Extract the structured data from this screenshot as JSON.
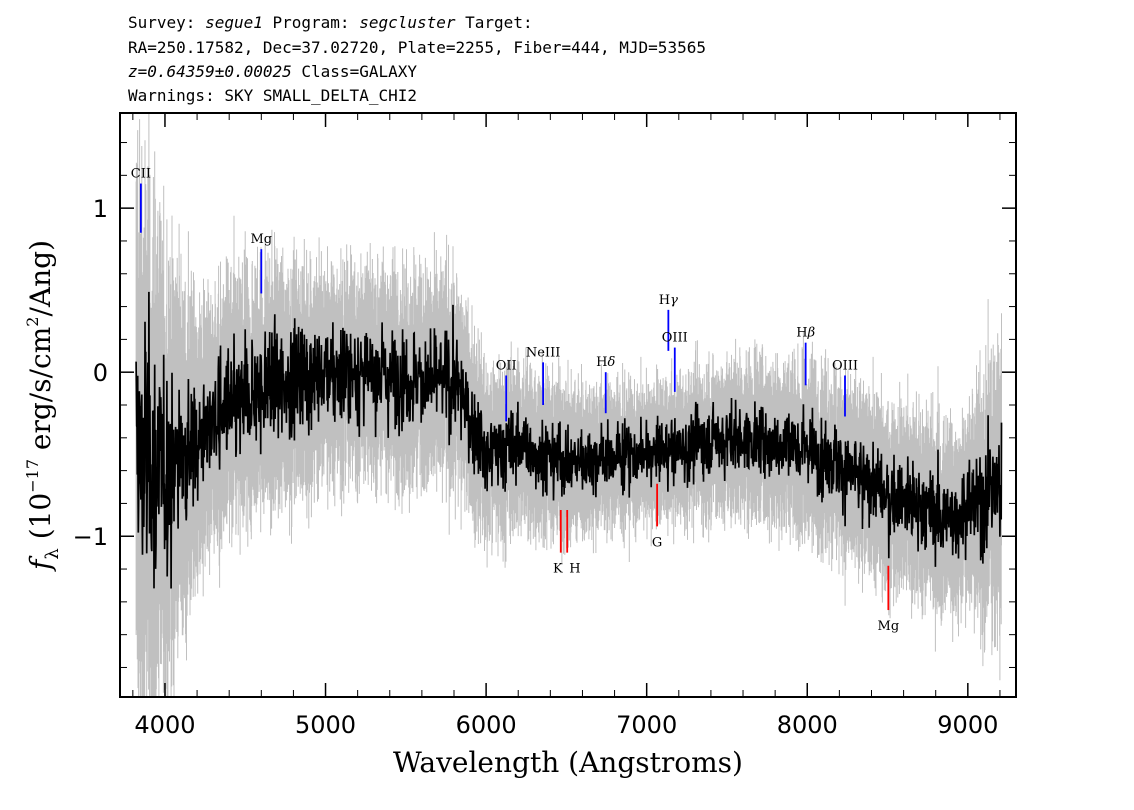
{
  "header": {
    "line1_prefix": "Survey: ",
    "survey": "segue1",
    "line1_mid": " Program: ",
    "program": "segcluster",
    "line1_suffix": " Target:",
    "line2": "RA=250.17582, Dec=37.02720, Plate=2255, Fiber=444, MJD=53565",
    "redshift": "z=0.64359±0.00025",
    "line3_suffix": " Class=GALAXY",
    "line4": "Warnings: SKY SMALL_DELTA_CHI2"
  },
  "chart_data": {
    "type": "line",
    "xlabel": "Wavelength (Angstroms)",
    "ylabel": "f_λ (10^-17 erg/s/cm²/Ang)",
    "xlim": [
      3720,
      9300
    ],
    "ylim": [
      -1.98,
      1.58
    ],
    "x_ticks": [
      4000,
      5000,
      6000,
      7000,
      8000,
      9000
    ],
    "y_ticks": [
      -1,
      0,
      1
    ],
    "y_tick_labels": [
      "−1",
      "0",
      "1"
    ],
    "data_range": [
      3820,
      9210
    ],
    "series": [
      {
        "role": "flux",
        "color": "#000000",
        "approx_continuum": [
          {
            "x": 3820,
            "y": -0.5
          },
          {
            "x": 4000,
            "y": -0.6
          },
          {
            "x": 4300,
            "y": -0.3
          },
          {
            "x": 4700,
            "y": -0.05
          },
          {
            "x": 5200,
            "y": 0.0
          },
          {
            "x": 5600,
            "y": -0.05
          },
          {
            "x": 5800,
            "y": -0.05
          },
          {
            "x": 6000,
            "y": -0.5
          },
          {
            "x": 6200,
            "y": -0.45
          },
          {
            "x": 6500,
            "y": -0.55
          },
          {
            "x": 7000,
            "y": -0.5
          },
          {
            "x": 7500,
            "y": -0.4
          },
          {
            "x": 8000,
            "y": -0.45
          },
          {
            "x": 8500,
            "y": -0.75
          },
          {
            "x": 8900,
            "y": -0.9
          },
          {
            "x": 9200,
            "y": -0.7
          }
        ]
      },
      {
        "role": "error",
        "color": "#c0c0c0",
        "approx_halfwidth": [
          {
            "x": 3820,
            "y": 1.6
          },
          {
            "x": 4200,
            "y": 0.7
          },
          {
            "x": 5000,
            "y": 0.55
          },
          {
            "x": 5800,
            "y": 0.55
          },
          {
            "x": 6000,
            "y": 0.45
          },
          {
            "x": 7000,
            "y": 0.35
          },
          {
            "x": 8000,
            "y": 0.45
          },
          {
            "x": 9000,
            "y": 0.5
          },
          {
            "x": 9200,
            "y": 0.8
          }
        ]
      }
    ],
    "line_markers": [
      {
        "label": "CII",
        "x": 3850,
        "y0": 0.85,
        "y1": 1.15,
        "color": "#0000ff",
        "label_pos": "above",
        "greek": false
      },
      {
        "label": "Mg",
        "x": 4600,
        "y0": 0.48,
        "y1": 0.75,
        "color": "#0000ff",
        "label_pos": "above",
        "greek": false
      },
      {
        "label": "OII",
        "x": 6125,
        "y0": -0.3,
        "y1": -0.02,
        "color": "#0000ff",
        "label_pos": "above",
        "greek": false
      },
      {
        "label": "NeIII",
        "x": 6355,
        "y0": -0.2,
        "y1": 0.06,
        "color": "#0000ff",
        "label_pos": "above",
        "greek": false
      },
      {
        "label": "Hδ",
        "x": 6745,
        "y0": -0.25,
        "y1": 0.0,
        "color": "#0000ff",
        "label_pos": "above",
        "greek": true
      },
      {
        "label": "Hγ",
        "x": 7135,
        "y0": 0.13,
        "y1": 0.38,
        "color": "#0000ff",
        "label_pos": "above",
        "greek": true
      },
      {
        "label": "OIII",
        "x": 7175,
        "y0": -0.12,
        "y1": 0.15,
        "color": "#0000ff",
        "label_pos": "above",
        "greek": false
      },
      {
        "label": "Hβ",
        "x": 7990,
        "y0": -0.08,
        "y1": 0.18,
        "color": "#0000ff",
        "label_pos": "above",
        "greek": true
      },
      {
        "label": "OIII",
        "x": 8235,
        "y0": -0.27,
        "y1": -0.02,
        "color": "#0000ff",
        "label_pos": "above",
        "greek": false
      },
      {
        "label": "K",
        "x": 6465,
        "y0": -1.1,
        "y1": -0.84,
        "color": "#ff0000",
        "label_pos": "below",
        "greek": false
      },
      {
        "label": "H",
        "x": 6505,
        "y0": -1.1,
        "y1": -0.84,
        "color": "#ff0000",
        "label_pos": "below",
        "greek": false
      },
      {
        "label": "G",
        "x": 7065,
        "y0": -0.94,
        "y1": -0.68,
        "color": "#ff0000",
        "label_pos": "below",
        "greek": false
      },
      {
        "label": "Mg",
        "x": 8505,
        "y0": -1.45,
        "y1": -1.18,
        "color": "#ff0000",
        "label_pos": "below",
        "greek": false
      }
    ]
  }
}
